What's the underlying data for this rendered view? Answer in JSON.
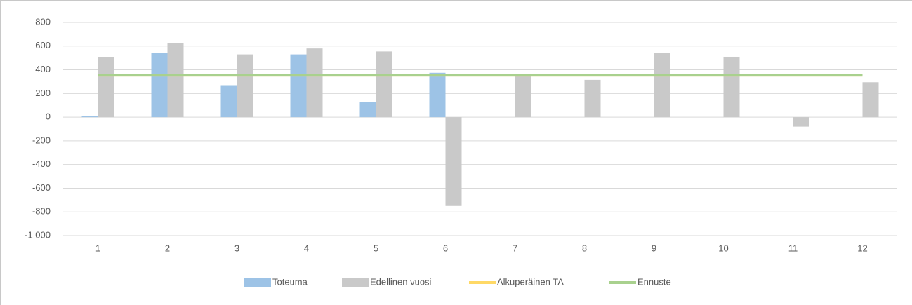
{
  "chart_data": {
    "type": "bar",
    "categories": [
      "1",
      "2",
      "3",
      "4",
      "5",
      "6",
      "7",
      "8",
      "9",
      "10",
      "11",
      "12"
    ],
    "series": [
      {
        "name": "Toteuma",
        "type": "bar",
        "color": "#9dc3e6",
        "values": [
          10,
          545,
          270,
          530,
          130,
          375,
          null,
          null,
          null,
          null,
          null,
          null
        ]
      },
      {
        "name": "Edellinen vuosi",
        "type": "bar",
        "color": "#c9c9c9",
        "values": [
          505,
          625,
          530,
          580,
          555,
          -750,
          360,
          315,
          540,
          510,
          -80,
          295
        ]
      },
      {
        "name": "Alkuperäinen TA",
        "type": "line",
        "color": "#ffd966",
        "values": [
          355,
          355,
          355,
          355,
          355,
          355,
          355,
          355,
          355,
          355,
          355,
          355
        ]
      },
      {
        "name": "Ennuste",
        "type": "line",
        "color": "#a9d18e",
        "values": [
          355,
          355,
          355,
          355,
          355,
          355,
          355,
          355,
          355,
          355,
          355,
          355
        ]
      }
    ],
    "ylim": [
      -1000,
      800
    ],
    "yticks": [
      {
        "value": -1000,
        "label": "-1 000"
      },
      -800,
      -600,
      -400,
      -200,
      0,
      200,
      400,
      600,
      800
    ],
    "grid": true,
    "legend": "bottom"
  }
}
